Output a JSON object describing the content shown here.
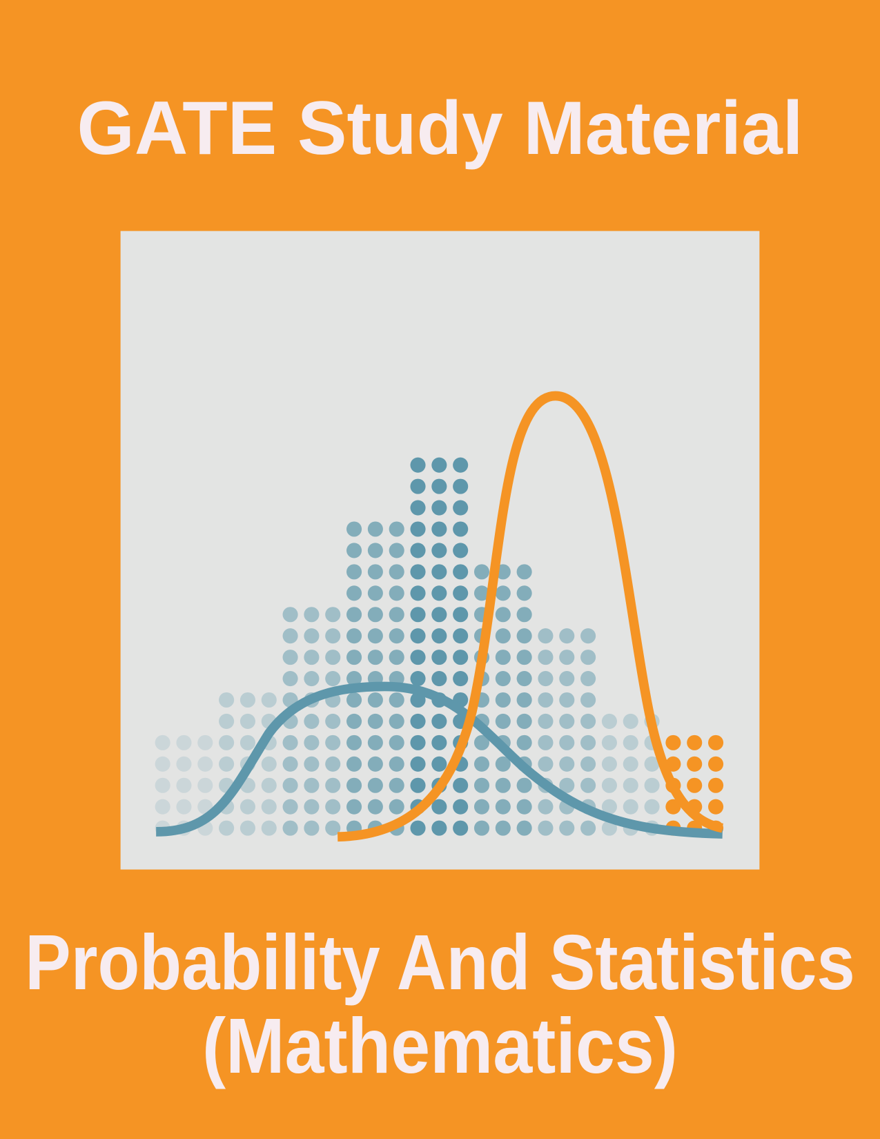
{
  "header": {
    "title": "GATE Study Material"
  },
  "footer": {
    "lines": [
      "Probability And Statistics",
      "(Mathematics)"
    ]
  }
}
